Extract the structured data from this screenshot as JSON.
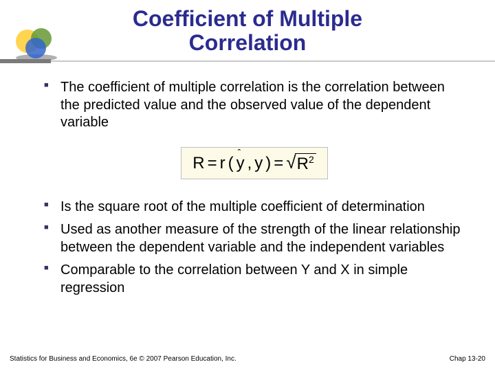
{
  "title": {
    "line1": "Coefficient of Multiple",
    "line2": "Correlation",
    "color": "#2b2b8f",
    "fontsize": 32
  },
  "logo": {
    "circle1_color": "#ffcc33",
    "circle2_color": "#669933",
    "circle3_color": "#3366cc",
    "shadow_color": "#b0b0b0"
  },
  "divider": {
    "dark_color": "#7a7a7a",
    "light_color": "#c8c8c8"
  },
  "bullets": {
    "marker_color": "#333366",
    "text_color": "#000000",
    "fontsize": 20,
    "group1": [
      "The coefficient of multiple correlation is the correlation between the predicted value and the observed value of the dependent variable"
    ],
    "group2": [
      "Is the square root of the multiple coefficient of determination",
      "Used as another measure of the strength of the linear relationship between the dependent variable and the independent variables",
      "Comparable to the correlation between Y and X in simple regression"
    ]
  },
  "formula": {
    "lhs": "R",
    "mid_fn": "r",
    "arg1": "ŷ",
    "arg2": "y",
    "rhs_under_root": "R",
    "rhs_exponent": "2",
    "border_color": "#bfbfbf",
    "background_color": "#fdfae8",
    "fontsize": 24
  },
  "footer": {
    "left": "Statistics for Business and Economics, 6e © 2007 Pearson Education, Inc.",
    "right": "Chap 13-20",
    "fontsize": 10
  }
}
